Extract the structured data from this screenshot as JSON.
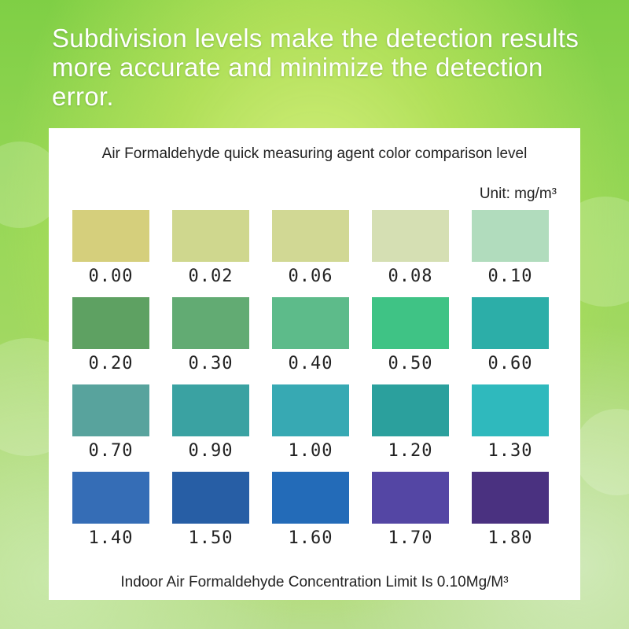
{
  "headline": "Subdivision levels make the detection results more accurate and minimize the detection error.",
  "card": {
    "title": "Air Formaldehyde quick measuring agent color comparison level",
    "unit": "Unit: mg/m³",
    "note": "Indoor Air Formaldehyde Concentration Limit Is 0.10Mg/M³"
  },
  "swatches": [
    {
      "value": "0.00",
      "color": "#d5cf7c"
    },
    {
      "value": "0.02",
      "color": "#cfd78e"
    },
    {
      "value": "0.06",
      "color": "#d1d894"
    },
    {
      "value": "0.08",
      "color": "#d5dfb3"
    },
    {
      "value": "0.10",
      "color": "#b1dcbd"
    },
    {
      "value": "0.20",
      "color": "#5ea162"
    },
    {
      "value": "0.30",
      "color": "#62ab73"
    },
    {
      "value": "0.40",
      "color": "#5dbb8a"
    },
    {
      "value": "0.50",
      "color": "#3fc385"
    },
    {
      "value": "0.60",
      "color": "#2caea8"
    },
    {
      "value": "0.70",
      "color": "#58a39d"
    },
    {
      "value": "0.90",
      "color": "#3aa2a2"
    },
    {
      "value": "1.00",
      "color": "#37a9b3"
    },
    {
      "value": "1.20",
      "color": "#2ba09d"
    },
    {
      "value": "1.30",
      "color": "#2fb9bd"
    },
    {
      "value": "1.40",
      "color": "#356db6"
    },
    {
      "value": "1.50",
      "color": "#275ea5"
    },
    {
      "value": "1.60",
      "color": "#236bb8"
    },
    {
      "value": "1.70",
      "color": "#5446a4"
    },
    {
      "value": "1.80",
      "color": "#4a3180"
    }
  ]
}
